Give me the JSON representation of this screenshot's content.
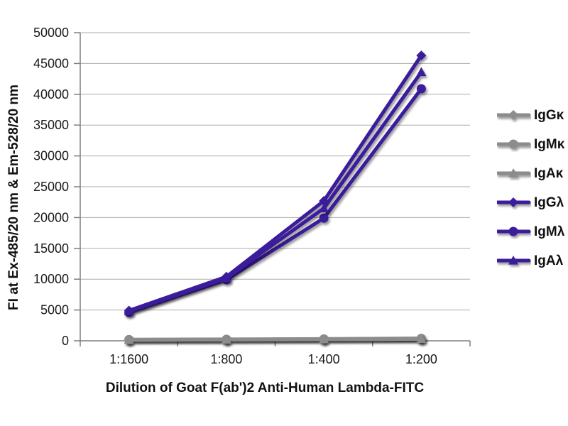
{
  "figure": {
    "x_axis_title": "Dilution of Goat F(ab')2 Anti-Human Lambda-FITC",
    "y_axis_title": "FI at Ex-485/20 nm & Em-528/20 nm"
  },
  "chart_data": {
    "type": "line",
    "title": "",
    "xlabel": "Dilution of Goat F(ab')2 Anti-Human Lambda-FITC",
    "ylabel": "FI at Ex-485/20 nm & Em-528/20 nm",
    "categories": [
      "1:1600",
      "1:800",
      "1:400",
      "1:200"
    ],
    "ylim": [
      0,
      50000
    ],
    "ytick_step": 5000,
    "grid": "horizontal-gridlines-on",
    "legend_position": "right",
    "colors": {
      "kappa_series": "#8C8C8C",
      "lambda_series": "#3B1E9B",
      "gridline": "#ABABAB",
      "axis": "#7F7F7F",
      "text": "#1A1A1A"
    },
    "series": [
      {
        "name": "IgGκ",
        "marker": "diamond",
        "color": "#8C8C8C",
        "values": [
          100,
          150,
          200,
          250
        ]
      },
      {
        "name": "IgMκ",
        "marker": "circle",
        "color": "#8C8C8C",
        "values": [
          200,
          250,
          300,
          400
        ]
      },
      {
        "name": "IgAκ",
        "marker": "triangle",
        "color": "#8C8C8C",
        "values": [
          150,
          200,
          250,
          300
        ]
      },
      {
        "name": "IgGλ",
        "marker": "diamond",
        "color": "#3B1E9B",
        "values": [
          4900,
          10400,
          22700,
          46300
        ]
      },
      {
        "name": "IgMλ",
        "marker": "circle",
        "color": "#3B1E9B",
        "values": [
          4600,
          9900,
          19900,
          40900
        ]
      },
      {
        "name": "IgAλ",
        "marker": "triangle",
        "color": "#3B1E9B",
        "values": [
          4800,
          10200,
          21500,
          43600
        ]
      }
    ]
  }
}
